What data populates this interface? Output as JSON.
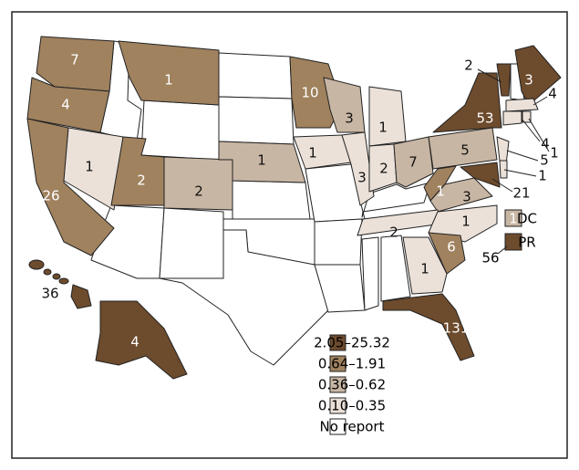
{
  "legend": [
    {
      "label": "2.05–25.32",
      "color": "#6d4b2d"
    },
    {
      "label": "0.64–1.91",
      "color": "#a0825f"
    },
    {
      "label": "0.36–0.62",
      "color": "#c8b6a4"
    },
    {
      "label": "0.10–0.35",
      "color": "#ebe1d9"
    },
    {
      "label": "No report",
      "color": "#ffffff"
    }
  ],
  "regions": [
    {
      "value": 7,
      "legend": 1
    },
    {
      "value": 4,
      "legend": 1
    },
    {
      "value": 26,
      "legend": 1
    },
    {
      "value": 1,
      "legend": 3
    },
    {
      "value": 1,
      "legend": 1
    },
    {
      "value": 2,
      "legend": 1
    },
    {
      "value": 2,
      "legend": 2
    },
    {
      "value": 1,
      "legend": 2
    },
    {
      "value": 10,
      "legend": 1
    },
    {
      "value": 1,
      "legend": 3
    },
    {
      "value": 3,
      "legend": 2
    },
    {
      "value": 3,
      "legend": 3
    },
    {
      "value": 1,
      "legend": 3
    },
    {
      "value": 2,
      "legend": 3
    },
    {
      "value": 7,
      "legend": 2
    },
    {
      "value": 1,
      "legend": 1
    },
    {
      "value": 3,
      "legend": 2
    },
    {
      "value": 2,
      "legend": 3
    },
    {
      "value": 1,
      "legend": 3
    },
    {
      "value": 6,
      "legend": 1
    },
    {
      "value": 1,
      "legend": 3
    },
    {
      "value": 131,
      "legend": 0
    },
    {
      "value": 5,
      "legend": 2
    },
    {
      "value": 53,
      "legend": 0
    },
    {
      "value": 2,
      "legend": 0
    },
    {
      "value": 3,
      "legend": 0
    },
    {
      "value": 4,
      "legend": 3
    },
    {
      "value": 4,
      "legend": 3
    },
    {
      "value": 1,
      "legend": 3
    },
    {
      "value": 5,
      "legend": 3
    },
    {
      "value": 1,
      "legend": 3
    },
    {
      "value": 21,
      "legend": 0
    },
    {
      "value": 4,
      "legend": 0
    },
    {
      "value": 36,
      "legend": 0
    }
  ],
  "dc": {
    "label": "DC",
    "value": 1,
    "legend": 2
  },
  "pr": {
    "label": "PR",
    "value": 56,
    "legend": 0
  }
}
